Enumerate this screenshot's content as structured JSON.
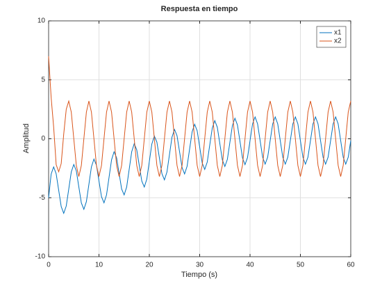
{
  "chart_data": {
    "type": "line",
    "title": "Respuesta en tiempo",
    "xlabel": "Tiempo (s)",
    "ylabel": "Amplitud",
    "x": [
      0,
      0.5,
      1,
      1.5,
      2,
      2.5,
      3,
      3.5,
      4,
      4.5,
      5,
      5.5,
      6,
      6.5,
      7,
      7.5,
      8,
      8.5,
      9,
      9.5,
      10,
      10.5,
      11,
      11.5,
      12,
      12.5,
      13,
      13.5,
      14,
      14.5,
      15,
      15.5,
      16,
      16.5,
      17,
      17.5,
      18,
      18.5,
      19,
      19.5,
      20,
      20.5,
      21,
      21.5,
      22,
      22.5,
      23,
      23.5,
      24,
      24.5,
      25,
      25.5,
      26,
      26.5,
      27,
      27.5,
      28,
      28.5,
      29,
      29.5,
      30,
      30.5,
      31,
      31.5,
      32,
      32.5,
      33,
      33.5,
      34,
      34.5,
      35,
      35.5,
      36,
      36.5,
      37,
      37.5,
      38,
      38.5,
      39,
      39.5,
      40,
      40.5,
      41,
      41.5,
      42,
      42.5,
      43,
      43.5,
      44,
      44.5,
      45,
      45.5,
      46,
      46.5,
      47,
      47.5,
      48,
      48.5,
      49,
      49.5,
      50,
      50.5,
      51,
      51.5,
      52,
      52.5,
      53,
      53.5,
      54,
      54.5,
      55,
      55.5,
      56,
      56.5,
      57,
      57.5,
      58,
      58.5,
      59,
      59.5,
      60
    ],
    "series": [
      {
        "name": "x1",
        "color": "#0072bd",
        "values": [
          -5.0,
          -2.99,
          -2.39,
          -2.97,
          -4.36,
          -5.75,
          -6.32,
          -5.7,
          -4.26,
          -2.81,
          -2.18,
          -2.72,
          -4.08,
          -5.44,
          -5.98,
          -5.33,
          -3.86,
          -2.38,
          -1.72,
          -2.24,
          -3.58,
          -4.91,
          -5.43,
          -4.76,
          -3.27,
          -1.78,
          -1.1,
          -1.61,
          -2.93,
          -4.26,
          -4.76,
          -4.09,
          -2.59,
          -1.1,
          -0.42,
          -0.93,
          -2.25,
          -3.58,
          -4.09,
          -3.42,
          -1.93,
          -0.44,
          0.23,
          -0.28,
          -1.62,
          -2.96,
          -3.48,
          -2.82,
          -1.34,
          0.14,
          0.79,
          0.26,
          -1.09,
          -2.44,
          -2.98,
          -2.33,
          -0.87,
          0.59,
          1.23,
          0.68,
          -0.69,
          -2.05,
          -2.6,
          -1.98,
          -0.53,
          0.91,
          1.54,
          0.98,
          -0.4,
          -1.79,
          -2.35,
          -1.74,
          -0.3,
          1.13,
          1.74,
          1.17,
          -0.22,
          -1.62,
          -2.19,
          -1.59,
          -0.16,
          1.26,
          1.85,
          1.26,
          -0.15,
          -1.56,
          -2.15,
          -1.56,
          -0.15,
          1.26,
          1.85,
          1.26,
          -0.15,
          -1.56,
          -2.15,
          -1.56,
          -0.15,
          1.26,
          1.85,
          1.26,
          -0.15,
          -1.56,
          -2.15,
          -1.56,
          -0.15,
          1.26,
          1.85,
          1.26,
          -0.15,
          -1.56,
          -2.15,
          -1.56,
          -0.15,
          1.26,
          1.85,
          1.26,
          -0.15,
          -1.56,
          -2.15,
          -1.56,
          -0.15
        ]
      },
      {
        "name": "x2",
        "color": "#d95319",
        "values": [
          7,
          3.5,
          1.0,
          -2.2,
          -2.8,
          -2.1,
          0.4,
          2.5,
          3.2,
          2.26,
          0,
          -2.26,
          -3.2,
          -2.26,
          0,
          2.26,
          3.2,
          2.26,
          0,
          -2.26,
          -3.2,
          -2.26,
          0,
          2.26,
          3.2,
          2.26,
          0,
          -2.26,
          -3.2,
          -2.26,
          0,
          2.26,
          3.2,
          2.26,
          0,
          -2.26,
          -3.2,
          -2.26,
          0,
          2.26,
          3.2,
          2.26,
          0,
          -2.26,
          -3.2,
          -2.26,
          0,
          2.26,
          3.2,
          2.26,
          0,
          -2.26,
          -3.2,
          -2.26,
          0,
          2.26,
          3.2,
          2.26,
          0,
          -2.26,
          -3.2,
          -2.26,
          0,
          2.26,
          3.2,
          2.26,
          0,
          -2.26,
          -3.2,
          -2.26,
          0,
          2.26,
          3.2,
          2.26,
          0,
          -2.26,
          -3.2,
          -2.26,
          0,
          2.26,
          3.2,
          2.26,
          0,
          -2.26,
          -3.2,
          -2.26,
          0,
          2.26,
          3.2,
          2.26,
          0,
          -2.26,
          -3.2,
          -2.26,
          0,
          2.26,
          3.2,
          2.26,
          0,
          -2.26,
          -3.2,
          -2.26,
          0,
          2.26,
          3.2,
          2.26,
          0,
          -2.26,
          -3.2,
          -2.26,
          0,
          2.26,
          3.2,
          2.26,
          0,
          -2.26,
          -3.2,
          -2.26,
          0,
          2.26,
          3.2
        ]
      }
    ],
    "xlim": [
      0,
      60
    ],
    "xticks": [
      0,
      10,
      20,
      30,
      40,
      50,
      60
    ],
    "ylim": [
      -10,
      10
    ],
    "yticks": [
      -10,
      -5,
      0,
      5,
      10
    ],
    "grid": true,
    "legend": "northeast"
  }
}
